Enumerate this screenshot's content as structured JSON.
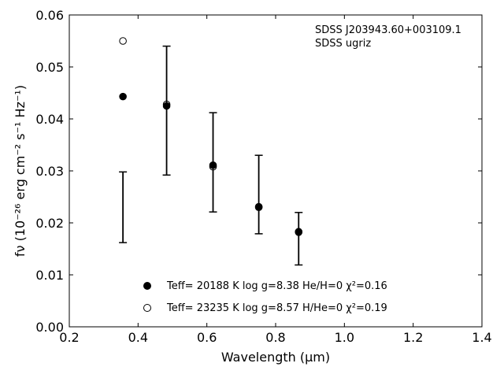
{
  "chart_data": {
    "type": "scatter",
    "xlabel": "Wavelength (μm)",
    "ylabel": "fν (10⁻²⁶ erg cm⁻² s⁻¹ Hz⁻¹)",
    "xlim": [
      0.2,
      1.4
    ],
    "ylim": [
      0.0,
      0.06
    ],
    "x_ticks": [
      "0.2",
      "0.4",
      "0.6",
      "0.8",
      "1.0",
      "1.2",
      "1.4"
    ],
    "y_ticks": [
      "0.00",
      "0.01",
      "0.02",
      "0.03",
      "0.04",
      "0.05",
      "0.06"
    ],
    "grid": false,
    "legend_position": "bottom-center",
    "annotation_lines": [
      "SDSS J203943.60+003109.1",
      "SDSS ugriz"
    ],
    "observed": {
      "x": [
        0.356,
        0.483,
        0.618,
        0.751,
        0.867
      ],
      "y": [
        0.023,
        0.0416,
        0.0317,
        0.0254,
        0.0169
      ],
      "yerr_low": [
        0.0162,
        0.0292,
        0.0221,
        0.0179,
        0.0119
      ],
      "yerr_high": [
        0.0298,
        0.054,
        0.0412,
        0.033,
        0.022
      ],
      "color": "#000000"
    },
    "series": [
      {
        "name": "Teff= 20188 K  log g=8.38  He/H=0  χ²=0.16",
        "marker": "filled-circle",
        "x": [
          0.356,
          0.483,
          0.618,
          0.751,
          0.867
        ],
        "y": [
          0.0443,
          0.0425,
          0.0311,
          0.0231,
          0.0183
        ]
      },
      {
        "name": "Teff= 23235 K  log g=8.57  H/He=0  χ²=0.19",
        "marker": "open-circle",
        "x": [
          0.356,
          0.483,
          0.618,
          0.751,
          0.867
        ],
        "y": [
          0.055,
          0.0428,
          0.0308,
          0.023,
          0.0182
        ]
      }
    ]
  }
}
